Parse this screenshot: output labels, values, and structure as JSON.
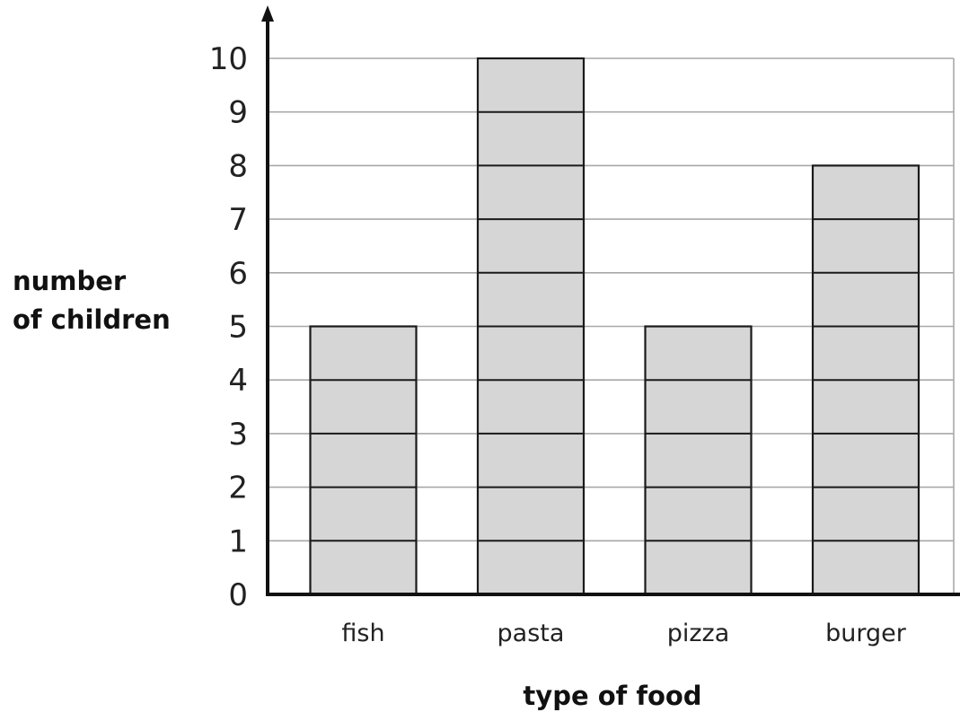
{
  "chart_data": {
    "type": "bar",
    "categories": [
      "fish",
      "pasta",
      "pizza",
      "burger"
    ],
    "values": [
      5,
      10,
      5,
      8
    ],
    "xlabel": "type of food",
    "ylabel_lines": [
      "number",
      "of children"
    ],
    "ylim": [
      0,
      10
    ],
    "yticks": [
      "0",
      "1",
      "2",
      "3",
      "4",
      "5",
      "6",
      "7",
      "8",
      "9",
      "10"
    ],
    "grid": true,
    "bar_color": "#d6d6d6",
    "bar_stroke": "#1a1a1a",
    "grid_color": "#a8a8a8",
    "axis_color": "#111111"
  }
}
